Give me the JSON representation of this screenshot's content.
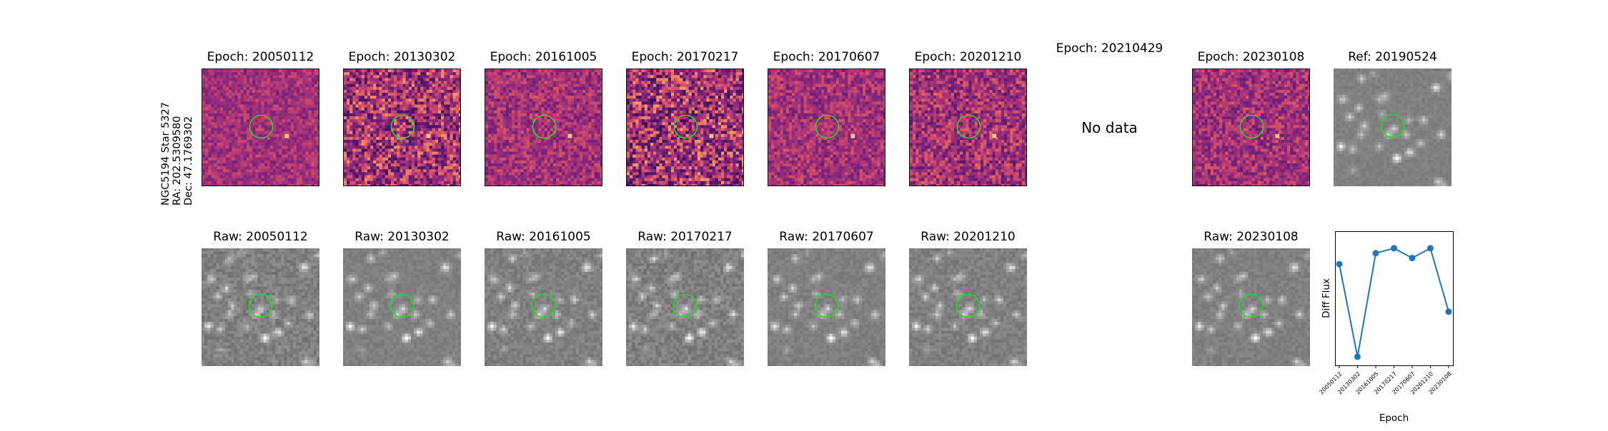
{
  "row_label": {
    "line1": "NGC5194 Star 5327",
    "line2": "RA: 202.5309580",
    "line3": "Dec: 47.1769302"
  },
  "colors": {
    "circle": "#22dd22",
    "line": "#1f77b4"
  },
  "diff_panels": [
    {
      "title": "Epoch: 20050112",
      "has_data": true
    },
    {
      "title": "Epoch: 20130302",
      "has_data": true
    },
    {
      "title": "Epoch: 20161005",
      "has_data": true
    },
    {
      "title": "Epoch: 20170217",
      "has_data": true
    },
    {
      "title": "Epoch: 20170607",
      "has_data": true
    },
    {
      "title": "Epoch: 20201210",
      "has_data": true
    },
    {
      "title": "Epoch: 20210429",
      "has_data": false,
      "no_data_text": "No data"
    },
    {
      "title": "Epoch: 20230108",
      "has_data": true
    },
    {
      "title": "Ref: 20190524",
      "has_data": true,
      "ref": true
    }
  ],
  "raw_panels": [
    {
      "title": "Raw: 20050112"
    },
    {
      "title": "Raw: 20130302"
    },
    {
      "title": "Raw: 20161005"
    },
    {
      "title": "Raw: 20170217"
    },
    {
      "title": "Raw: 20170607"
    },
    {
      "title": "Raw: 20201210"
    },
    {
      "title": ""
    },
    {
      "title": "Raw: 20230108"
    }
  ],
  "chart_data": {
    "type": "line",
    "xlabel": "Epoch",
    "ylabel": "Diff Flux",
    "categories": [
      "20050112",
      "20130302",
      "20161005",
      "20170217",
      "20170607",
      "20201210",
      "20230108"
    ],
    "values": [
      0.78,
      0.02,
      0.87,
      0.91,
      0.83,
      0.91,
      0.39
    ],
    "ylim": [
      -0.05,
      1.05
    ],
    "grid": false,
    "marker": "circle"
  }
}
